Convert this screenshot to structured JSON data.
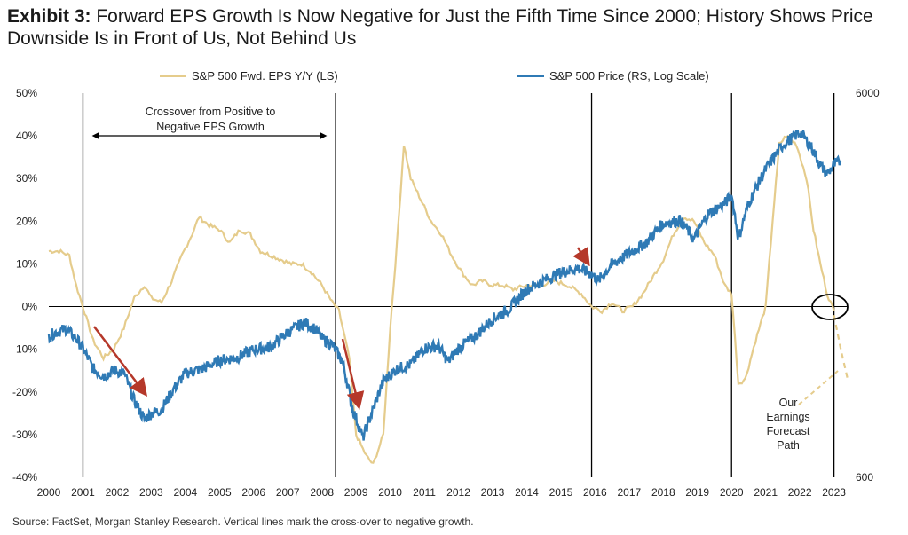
{
  "header": {
    "exhibit": "Exhibit 3:",
    "title": "Forward EPS Growth Is Now Negative for Just the Fifth Time Since 2000; History Shows Price Downside Is in Front of Us, Not Behind Us"
  },
  "footer": {
    "source": "Source: FactSet, Morgan Stanley Research. Vertical lines mark the cross-over to negative growth."
  },
  "chart_data": {
    "type": "line",
    "x_range": [
      2000,
      2023.4
    ],
    "x_ticks": [
      "2000",
      "2001",
      "2002",
      "2003",
      "2004",
      "2005",
      "2006",
      "2007",
      "2008",
      "2009",
      "2010",
      "2011",
      "2012",
      "2013",
      "2014",
      "2015",
      "2016",
      "2017",
      "2018",
      "2019",
      "2020",
      "2021",
      "2022",
      "2023"
    ],
    "y_left": {
      "label": "",
      "ticks": [
        "50%",
        "40%",
        "30%",
        "20%",
        "10%",
        "0%",
        "-10%",
        "-20%",
        "-30%",
        "-40%"
      ],
      "range": [
        -40,
        50
      ]
    },
    "y_right": {
      "label": "",
      "scale": "log",
      "ticks": [
        "6000",
        "600"
      ],
      "range": [
        600,
        6000
      ]
    },
    "vertical_lines": [
      2001.0,
      2008.4,
      2015.9,
      2020.0,
      2023.0
    ],
    "annotations": {
      "crossover": "Crossover from Positive to Negative EPS Growth",
      "crossover_line1": "Crossover from Positive to",
      "crossover_line2": "Negative EPS Growth",
      "forecast": [
        "Our",
        "Earnings",
        "Forecast",
        "Path"
      ]
    },
    "colors": {
      "eps": "#E5CC8C",
      "price": "#2F7AB5",
      "arrow": "#B5382A",
      "lines": "#000000"
    },
    "series": [
      {
        "name": "S&P 500 Fwd. EPS Y/Y (LS)",
        "axis": "left",
        "x": [
          2000.0,
          2000.3,
          2000.6,
          2000.8,
          2001.0,
          2001.3,
          2001.6,
          2001.9,
          2002.2,
          2002.5,
          2002.8,
          2003.0,
          2003.3,
          2003.6,
          2003.9,
          2004.2,
          2004.4,
          2004.7,
          2005.0,
          2005.3,
          2005.6,
          2005.9,
          2006.2,
          2006.5,
          2006.8,
          2007.1,
          2007.4,
          2007.7,
          2008.0,
          2008.3,
          2008.5,
          2008.8,
          2009.0,
          2009.3,
          2009.5,
          2009.8,
          2010.0,
          2010.2,
          2010.4,
          2010.6,
          2010.9,
          2011.2,
          2011.5,
          2011.8,
          2012.1,
          2012.4,
          2012.7,
          2013.0,
          2013.3,
          2013.6,
          2014.0,
          2014.4,
          2014.8,
          2015.2,
          2015.6,
          2015.9,
          2016.2,
          2016.5,
          2016.8,
          2017.1,
          2017.4,
          2017.7,
          2018.0,
          2018.3,
          2018.6,
          2018.9,
          2019.2,
          2019.5,
          2019.8,
          2020.0,
          2020.2,
          2020.4,
          2020.7,
          2021.0,
          2021.2,
          2021.4,
          2021.6,
          2021.9,
          2022.2,
          2022.4,
          2022.6,
          2022.8,
          2023.0
        ],
        "y": [
          13,
          13,
          12,
          5,
          0,
          -8,
          -12,
          -10,
          -5,
          2,
          5,
          2,
          1,
          6,
          12,
          17,
          21,
          19,
          18,
          15,
          18,
          17,
          13,
          12,
          11,
          10,
          10,
          8,
          5,
          1,
          -1,
          -12,
          -30,
          -35,
          -37,
          -30,
          -5,
          15,
          38,
          30,
          25,
          20,
          17,
          12,
          8,
          5,
          6,
          5,
          5,
          4,
          5,
          5,
          6,
          5,
          3,
          0,
          -1,
          1,
          -1,
          0,
          3,
          7,
          11,
          17,
          21,
          20,
          15,
          12,
          5,
          3,
          -18,
          -17,
          -8,
          0,
          20,
          38,
          40,
          38,
          30,
          18,
          10,
          3,
          -1
        ]
      },
      {
        "name": "S&P 500 Price (RS, Log Scale)",
        "axis": "right",
        "x": [
          2000.0,
          2000.2,
          2000.5,
          2000.8,
          2001.0,
          2001.3,
          2001.6,
          2001.9,
          2002.2,
          2002.5,
          2002.8,
          2003.0,
          2003.3,
          2003.6,
          2004.0,
          2004.5,
          2005.0,
          2005.5,
          2006.0,
          2006.5,
          2007.0,
          2007.5,
          2007.8,
          2008.0,
          2008.3,
          2008.6,
          2008.9,
          2009.2,
          2009.5,
          2009.8,
          2010.2,
          2010.6,
          2011.0,
          2011.4,
          2011.7,
          2012.0,
          2012.5,
          2013.0,
          2013.5,
          2014.0,
          2014.5,
          2015.0,
          2015.5,
          2015.9,
          2016.1,
          2016.5,
          2017.0,
          2017.5,
          2018.0,
          2018.5,
          2018.9,
          2019.3,
          2019.8,
          2020.0,
          2020.2,
          2020.5,
          2021.0,
          2021.5,
          2022.0,
          2022.3,
          2022.6,
          2022.8,
          2023.0,
          2023.2
        ],
        "y": [
          1400,
          1430,
          1460,
          1380,
          1300,
          1150,
          1100,
          1140,
          1120,
          950,
          850,
          880,
          900,
          1000,
          1120,
          1150,
          1210,
          1230,
          1290,
          1310,
          1430,
          1520,
          1460,
          1380,
          1330,
          1200,
          900,
          760,
          900,
          1070,
          1150,
          1180,
          1300,
          1320,
          1200,
          1300,
          1400,
          1550,
          1650,
          1850,
          1950,
          2050,
          2100,
          2030,
          1950,
          2150,
          2300,
          2450,
          2750,
          2800,
          2500,
          2900,
          3100,
          3250,
          2500,
          3100,
          3800,
          4400,
          4750,
          4400,
          3900,
          3700,
          3900,
          4000
        ]
      },
      {
        "name": "Our Earnings Forecast Path",
        "axis": "left",
        "x": [
          2023.0,
          2023.2,
          2023.4
        ],
        "y": [
          -2,
          -10,
          -17
        ]
      }
    ]
  }
}
